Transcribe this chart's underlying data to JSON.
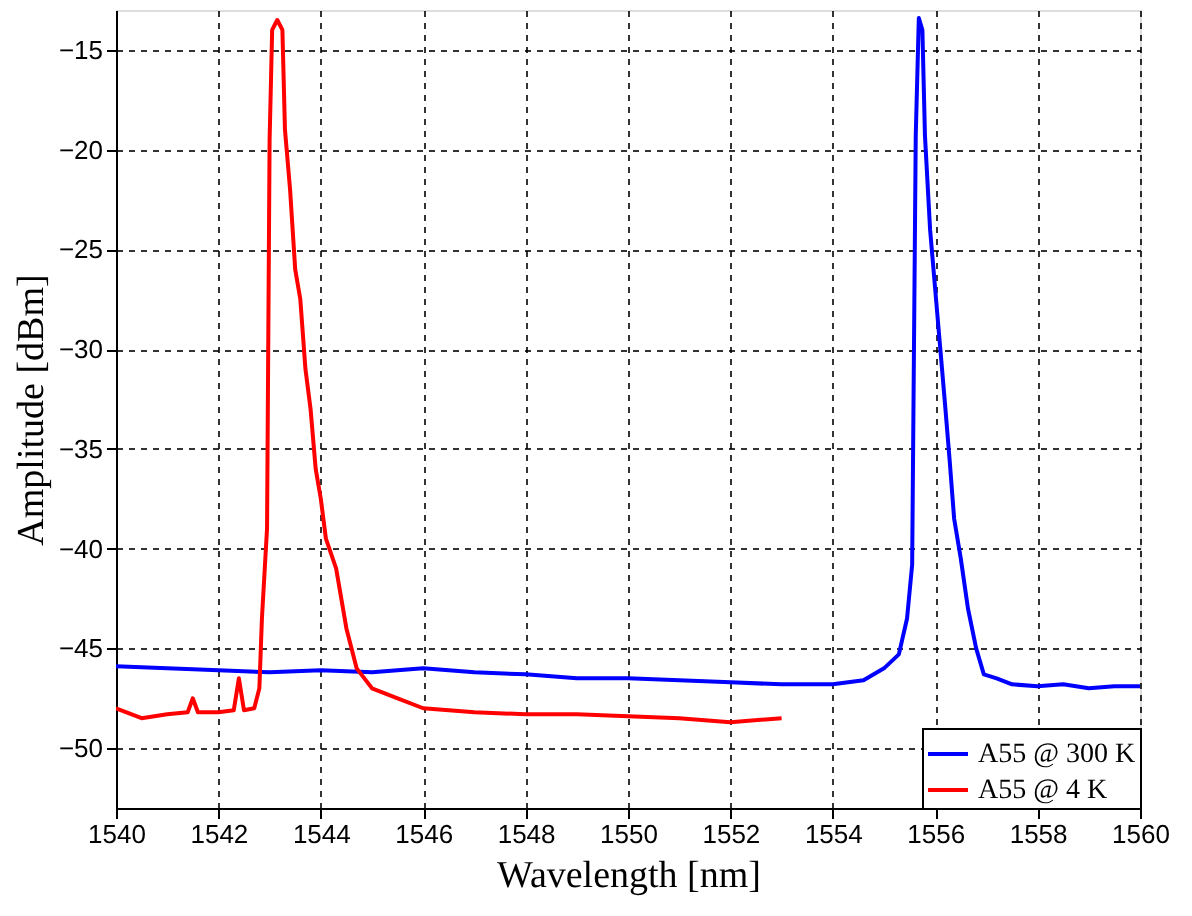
{
  "chart_data": {
    "type": "line",
    "xlabel": "Wavelength [nm]",
    "ylabel": "Amplitude [dBm]",
    "xlim": [
      1540,
      1560
    ],
    "xticks": [
      1540,
      1542,
      1544,
      1546,
      1548,
      1550,
      1552,
      1554,
      1556,
      1558,
      1560
    ],
    "ylim": [
      -53,
      -13
    ],
    "yticks": [
      -50,
      -45,
      -40,
      -35,
      -30,
      -25,
      -20,
      -15
    ],
    "grid": true,
    "legend": "bottom right",
    "line_style": "solid",
    "marker": "none",
    "series": [
      {
        "name": "A55 @ 300 K",
        "color": "#0000ff",
        "x": [
          1540,
          1541,
          1542,
          1543,
          1544,
          1545,
          1546,
          1547,
          1548,
          1549,
          1550,
          1551,
          1552,
          1553,
          1554,
          1554.6,
          1555.0,
          1555.29,
          1555.45,
          1555.55,
          1555.62,
          1555.68,
          1555.75,
          1555.8,
          1555.9,
          1556.0,
          1556.1,
          1556.19,
          1556.28,
          1556.37,
          1556.5,
          1556.64,
          1556.8,
          1556.95,
          1557.2,
          1557.5,
          1558,
          1558.5,
          1559,
          1559.5,
          1560
        ],
        "values": [
          -45.9,
          -46.0,
          -46.1,
          -46.2,
          -46.1,
          -46.2,
          -46.0,
          -46.2,
          -46.3,
          -46.5,
          -46.5,
          -46.6,
          -46.7,
          -46.8,
          -46.8,
          -46.6,
          -46.0,
          -45.3,
          -43.5,
          -40.8,
          -19.3,
          -13.4,
          -14.0,
          -19.3,
          -24.0,
          -27.0,
          -30.0,
          -32.7,
          -35.5,
          -38.5,
          -40.5,
          -43.0,
          -45.0,
          -46.3,
          -46.5,
          -46.8,
          -46.9,
          -46.8,
          -47.0,
          -46.9,
          -46.9
        ]
      },
      {
        "name": "A55 @ 4 K",
        "color": "#ff0000",
        "x": [
          1540,
          1540.5,
          1541,
          1541.4,
          1541.5,
          1541.6,
          1542,
          1542.3,
          1542.4,
          1542.5,
          1542.7,
          1542.8,
          1542.85,
          1542.95,
          1543.0,
          1543.05,
          1543.15,
          1543.25,
          1543.3,
          1543.4,
          1543.5,
          1543.6,
          1543.7,
          1543.8,
          1543.9,
          1544.0,
          1544.1,
          1544.3,
          1544.5,
          1544.7,
          1545,
          1545.5,
          1546,
          1547,
          1548,
          1549,
          1550,
          1551,
          1552,
          1553
        ],
        "values": [
          -48.0,
          -48.5,
          -48.3,
          -48.2,
          -47.5,
          -48.2,
          -48.2,
          -48.1,
          -46.5,
          -48.1,
          -48.0,
          -47.0,
          -43.5,
          -39.0,
          -19.5,
          -14.0,
          -13.5,
          -14.0,
          -19.0,
          -22.0,
          -26.0,
          -27.5,
          -31.0,
          -33.0,
          -36.0,
          -37.5,
          -39.5,
          -41.0,
          -44.0,
          -46.0,
          -47.0,
          -47.5,
          -48.0,
          -48.2,
          -48.3,
          -48.3,
          -48.4,
          -48.5,
          -48.7,
          -48.5
        ]
      }
    ]
  }
}
